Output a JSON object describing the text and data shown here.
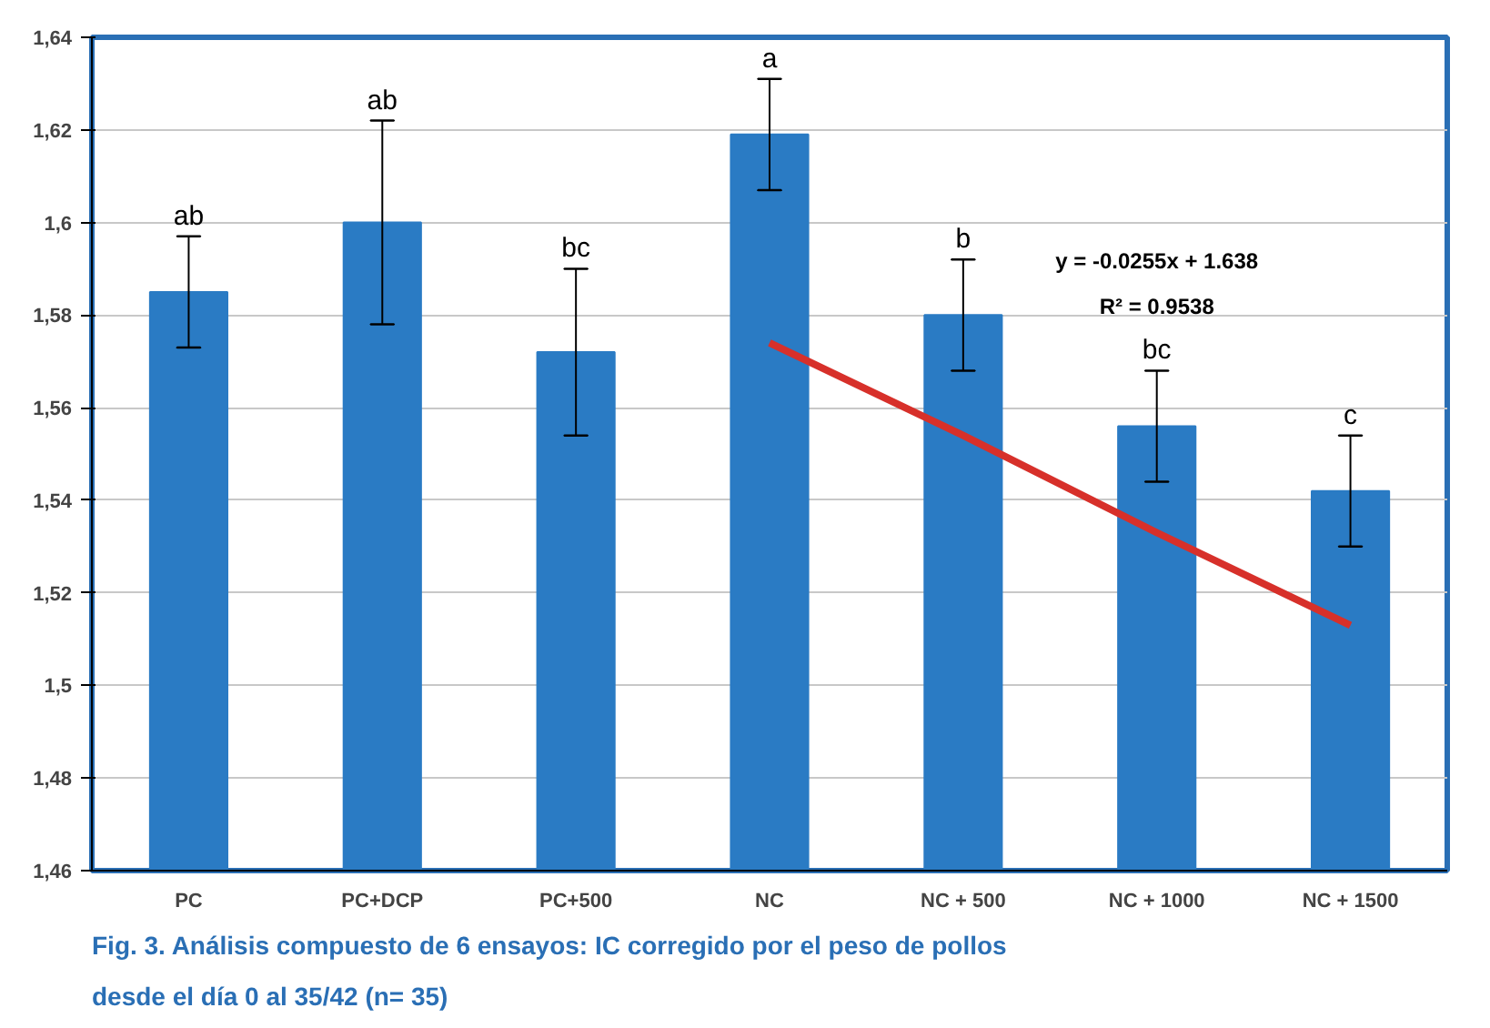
{
  "chart_data": {
    "type": "bar",
    "categories": [
      "PC",
      "PC+DCP",
      "PC+500",
      "NC",
      "NC + 500",
      "NC + 1000",
      "NC + 1500"
    ],
    "series": [
      {
        "color": "#2a7bc4",
        "values": [
          1.585,
          1.6,
          1.572,
          1.619,
          1.58,
          1.556,
          1.542
        ],
        "errors": [
          0.012,
          0.022,
          0.018,
          0.012,
          0.012,
          0.012,
          0.012
        ]
      },
      {
        "type": "line",
        "color": "#d7302a",
        "values": [
          null,
          null,
          null,
          1.574,
          1.554,
          1.533,
          1.513
        ]
      }
    ],
    "ylim": [
      1.46,
      1.64
    ],
    "yticks": [
      {
        "value": 1.46,
        "label": "1,46"
      },
      {
        "value": 1.48,
        "label": "1,48"
      },
      {
        "value": 1.5,
        "label": "1,5"
      },
      {
        "value": 1.52,
        "label": "1,52"
      },
      {
        "value": 1.54,
        "label": "1,54"
      },
      {
        "value": 1.56,
        "label": "1,56"
      },
      {
        "value": 1.58,
        "label": "1,58"
      },
      {
        "value": 1.6,
        "label": "1,6"
      },
      {
        "value": 1.62,
        "label": "1,62"
      },
      {
        "value": 1.64,
        "label": "1,64"
      }
    ],
    "grid": "y",
    "annotations": [
      "ab",
      "ab",
      "bc",
      "a",
      "b",
      "bc",
      "c",
      "y = -0.0255x + 1.638",
      "R² = 0.9538",
      "Fig. 3. Análisis compuesto de 6 ensayos: IC corregido por el peso de pollos desde el día 0 al 35/42 (n= 35)"
    ]
  }
}
